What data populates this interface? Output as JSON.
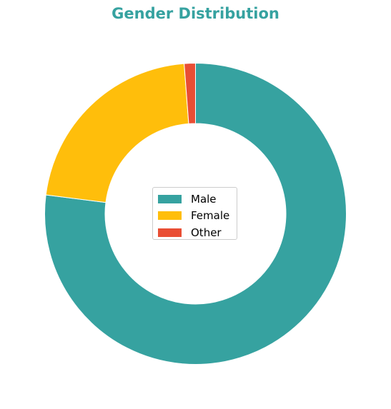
{
  "chart_data": {
    "type": "pie",
    "title": "Gender Distribution",
    "donut": true,
    "categories": [
      "Male",
      "Female",
      "Other"
    ],
    "values": [
      77.0,
      21.8,
      1.2
    ],
    "colors": [
      "#36a2a0",
      "#ffbe0b",
      "#e94e34"
    ],
    "legend": "center",
    "start_angle_deg": 90,
    "direction": "clockwise"
  },
  "legend": {
    "items": [
      {
        "label": "Male",
        "color": "#36a2a0"
      },
      {
        "label": "Female",
        "color": "#ffbe0b"
      },
      {
        "label": "Other",
        "color": "#e94e34"
      }
    ]
  },
  "colors": {
    "title": "#36a2a0"
  }
}
